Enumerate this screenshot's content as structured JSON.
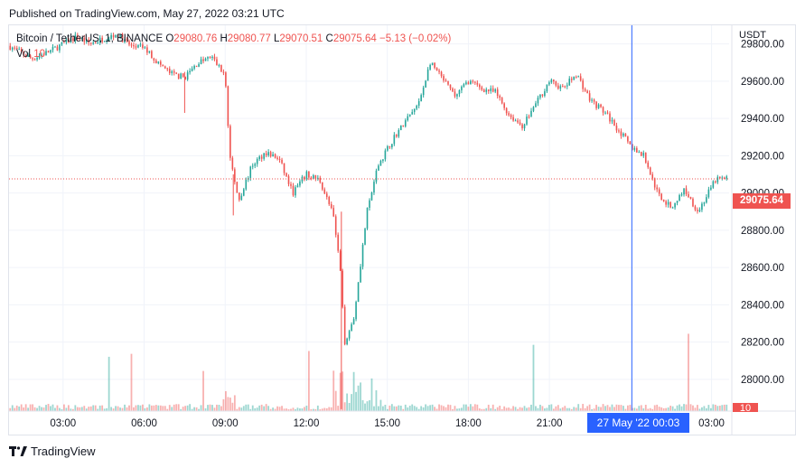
{
  "published": "Published on TradingView.com, May 27, 2022 03:21 UTC",
  "legend": {
    "symbol": "Bitcoin / TetherUS, 1, BINANCE",
    "o_label": "O",
    "o": "29080.76",
    "h_label": "H",
    "h": "29080.77",
    "l_label": "L",
    "l": "29070.51",
    "c_label": "C",
    "c": "29075.64",
    "change": "−5.13 (−0.02%)",
    "vol_label": "Vol",
    "vol": "10"
  },
  "currency": "USDT",
  "last_price_tag": "29075.64",
  "volume_tag": "10",
  "cursor_label": "27 May '22   00:03",
  "footer_brand": "TradingView",
  "colors": {
    "up": "#26a69a",
    "down": "#ef5350",
    "crosshair": "#2962ff",
    "grid": "#f0f3fa"
  },
  "chart_data": {
    "type": "candlestick",
    "symbol": "Bitcoin / TetherUS",
    "interval": "1",
    "exchange": "BINANCE",
    "x_ticks": [
      "03:00",
      "06:00",
      "09:00",
      "12:00",
      "15:00",
      "18:00",
      "21:00",
      "03:00"
    ],
    "y_ticks": [
      28000,
      28200,
      28400,
      28600,
      28800,
      29000,
      29200,
      29400,
      29600,
      29800
    ],
    "ylim": [
      27830,
      29900
    ],
    "last_price": 29075.64,
    "crosshair_time": "27 May '22 00:03",
    "grid": true,
    "price_path": [
      {
        "t": "01:00",
        "p": 29790
      },
      {
        "t": "01:50",
        "p": 29720
      },
      {
        "t": "02:30",
        "p": 29760
      },
      {
        "t": "03:00",
        "p": 29800
      },
      {
        "t": "03:30",
        "p": 29840
      },
      {
        "t": "04:00",
        "p": 29800
      },
      {
        "t": "04:30",
        "p": 29830
      },
      {
        "t": "05:00",
        "p": 29850
      },
      {
        "t": "05:30",
        "p": 29790
      },
      {
        "t": "06:00",
        "p": 29780
      },
      {
        "t": "06:30",
        "p": 29700
      },
      {
        "t": "07:00",
        "p": 29640
      },
      {
        "t": "07:30",
        "p": 29620
      },
      {
        "t": "08:00",
        "p": 29700
      },
      {
        "t": "08:30",
        "p": 29730
      },
      {
        "t": "09:00",
        "p": 29630
      },
      {
        "t": "09:10",
        "p": 29200
      },
      {
        "t": "09:30",
        "p": 28960
      },
      {
        "t": "10:00",
        "p": 29150
      },
      {
        "t": "10:30",
        "p": 29220
      },
      {
        "t": "11:00",
        "p": 29180
      },
      {
        "t": "11:30",
        "p": 29000
      },
      {
        "t": "12:00",
        "p": 29100
      },
      {
        "t": "12:30",
        "p": 29070
      },
      {
        "t": "13:00",
        "p": 28880
      },
      {
        "t": "13:15",
        "p": 28600
      },
      {
        "t": "13:25",
        "p": 28200
      },
      {
        "t": "13:45",
        "p": 28320
      },
      {
        "t": "14:15",
        "p": 28900
      },
      {
        "t": "14:40",
        "p": 29150
      },
      {
        "t": "15:15",
        "p": 29300
      },
      {
        "t": "15:45",
        "p": 29400
      },
      {
        "t": "16:10",
        "p": 29480
      },
      {
        "t": "16:35",
        "p": 29700
      },
      {
        "t": "17:00",
        "p": 29620
      },
      {
        "t": "17:30",
        "p": 29520
      },
      {
        "t": "18:00",
        "p": 29600
      },
      {
        "t": "18:30",
        "p": 29560
      },
      {
        "t": "19:00",
        "p": 29540
      },
      {
        "t": "19:30",
        "p": 29420
      },
      {
        "t": "20:00",
        "p": 29360
      },
      {
        "t": "20:30",
        "p": 29480
      },
      {
        "t": "21:00",
        "p": 29600
      },
      {
        "t": "21:30",
        "p": 29560
      },
      {
        "t": "22:00",
        "p": 29640
      },
      {
        "t": "22:30",
        "p": 29500
      },
      {
        "t": "23:00",
        "p": 29440
      },
      {
        "t": "23:30",
        "p": 29350
      },
      {
        "t": "00:00",
        "p": 29250
      },
      {
        "t": "00:30",
        "p": 29200
      },
      {
        "t": "01:00",
        "p": 29000
      },
      {
        "t": "01:30",
        "p": 28920
      },
      {
        "t": "02:00",
        "p": 29020
      },
      {
        "t": "02:30",
        "p": 28900
      },
      {
        "t": "03:10",
        "p": 29075
      }
    ]
  }
}
